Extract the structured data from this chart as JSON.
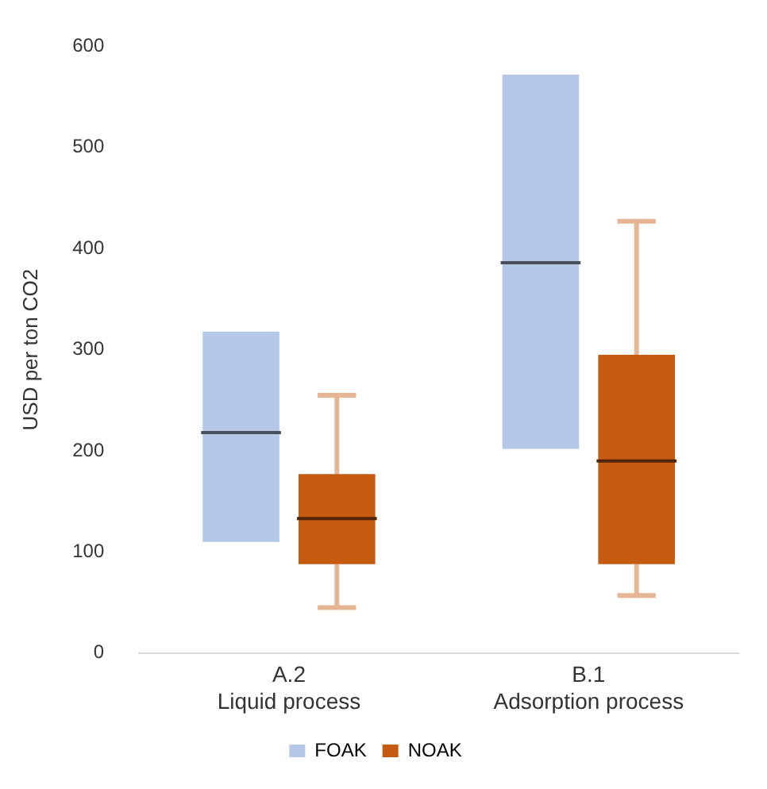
{
  "chart_data": {
    "type": "box",
    "ylabel": "USD per ton CO2",
    "categories": [
      "A.2\nLiquid process",
      "B.1\nAdsorption process"
    ],
    "ylim": [
      0,
      600
    ],
    "yticks": [
      0,
      100,
      200,
      300,
      400,
      500,
      600
    ],
    "grid": false,
    "legend": "bottom",
    "series": [
      {
        "name": "FOAK",
        "color": "#b4c7e7",
        "boxes": [
          {
            "low": 110,
            "q1": 110,
            "median": 218,
            "q3": 318,
            "high": 318
          },
          {
            "low": 202,
            "q1": 202,
            "median": 386,
            "q3": 572,
            "high": 572
          }
        ]
      },
      {
        "name": "NOAK",
        "color": "#c55a11",
        "boxes": [
          {
            "low": 45,
            "q1": 88,
            "median": 133,
            "q3": 177,
            "high": 255
          },
          {
            "low": 57,
            "q1": 88,
            "median": 190,
            "q3": 295,
            "high": 427
          }
        ]
      }
    ]
  }
}
